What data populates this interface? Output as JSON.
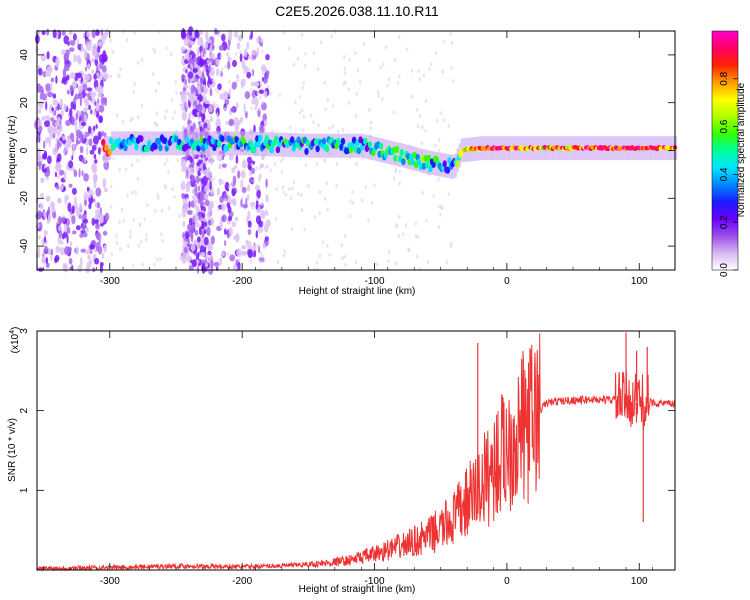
{
  "title": "C2E5.2026.038.11.10.R11",
  "chart_data": [
    {
      "type": "heatmap",
      "name": "spectrogram",
      "xlabel": "Height of straight line (km)",
      "ylabel": "Frequency (Hz)",
      "xlim": [
        -355,
        127
      ],
      "ylim": [
        -50,
        50
      ],
      "xticks": [
        -300,
        -200,
        -100,
        0,
        100
      ],
      "yticks": [
        -40,
        -20,
        0,
        20,
        40
      ],
      "colorbar": {
        "label": "Normalized spectral amplitude",
        "ticks": [
          0.0,
          0.2,
          0.4,
          0.6,
          0.8
        ],
        "range": [
          0,
          1
        ],
        "colormap": [
          "#ffffff",
          "#d9b8f2",
          "#9a4ee8",
          "#6a00ff",
          "#1b1bff",
          "#0088ff",
          "#00e5ff",
          "#00ff9a",
          "#33ff00",
          "#b2ff00",
          "#ffff00",
          "#ff9a00",
          "#ff2200",
          "#ff0066",
          "#ff00cc"
        ]
      },
      "signal_band": [
        {
          "height": -300,
          "frequency": 3,
          "amplitude": 0.35
        },
        {
          "height": -250,
          "frequency": 3,
          "amplitude": 0.35
        },
        {
          "height": -200,
          "frequency": 3,
          "amplitude": 0.4
        },
        {
          "height": -150,
          "frequency": 2,
          "amplitude": 0.38
        },
        {
          "height": -110,
          "frequency": 2,
          "amplitude": 0.4
        },
        {
          "height": -80,
          "frequency": -2,
          "amplitude": 0.45
        },
        {
          "height": -60,
          "frequency": -5,
          "amplitude": 0.45
        },
        {
          "height": -40,
          "frequency": -7,
          "amplitude": 0.35
        },
        {
          "height": -35,
          "frequency": 0,
          "amplitude": 0.55
        },
        {
          "height": -20,
          "frequency": 1,
          "amplitude": 0.9
        },
        {
          "height": 0,
          "frequency": 1,
          "amplitude": 0.85
        },
        {
          "height": 30,
          "frequency": 1,
          "amplitude": 0.75
        },
        {
          "height": 60,
          "frequency": 1,
          "amplitude": 0.85
        },
        {
          "height": 90,
          "frequency": 1,
          "amplitude": 0.95
        },
        {
          "height": 127,
          "frequency": 1,
          "amplitude": 0.8
        }
      ],
      "noise_regions": [
        {
          "from": -355,
          "to": -302,
          "density": "high"
        },
        {
          "from": -245,
          "to": -222,
          "density": "high"
        },
        {
          "from": -220,
          "to": -180,
          "density": "medium"
        }
      ]
    },
    {
      "type": "line",
      "name": "snr",
      "xlabel": "Height of straight line (km)",
      "ylabel": "SNR (10 * v/v)",
      "yscale_label": "(x10",
      "yscale_exponent": "4",
      "xlim": [
        -355,
        127
      ],
      "ylim": [
        0,
        3
      ],
      "xticks": [
        -300,
        -200,
        -100,
        0,
        100
      ],
      "yticks": [
        1,
        2,
        3
      ],
      "color": "#ee3333",
      "x": [
        -355,
        -300,
        -250,
        -200,
        -160,
        -140,
        -120,
        -100,
        -80,
        -60,
        -50,
        -40,
        -30,
        -20,
        -10,
        0,
        10,
        20,
        25,
        30,
        40,
        60,
        80,
        90,
        100,
        110,
        127
      ],
      "values": [
        0.02,
        0.03,
        0.05,
        0.04,
        0.06,
        0.08,
        0.12,
        0.2,
        0.3,
        0.42,
        0.52,
        0.65,
        0.85,
        1.05,
        1.3,
        1.55,
        1.75,
        1.9,
        2.0,
        2.1,
        2.12,
        2.14,
        2.14,
        2.15,
        2.12,
        2.1,
        2.08
      ],
      "spikes": [
        {
          "x": -22,
          "value": 2.85
        },
        {
          "x": 12,
          "value": 2.43
        },
        {
          "x": 90,
          "value": 2.98
        },
        {
          "x": 98,
          "value": 2.75
        },
        {
          "x": 103,
          "value": 0.6
        },
        {
          "x": 106,
          "value": 2.8
        }
      ]
    }
  ]
}
